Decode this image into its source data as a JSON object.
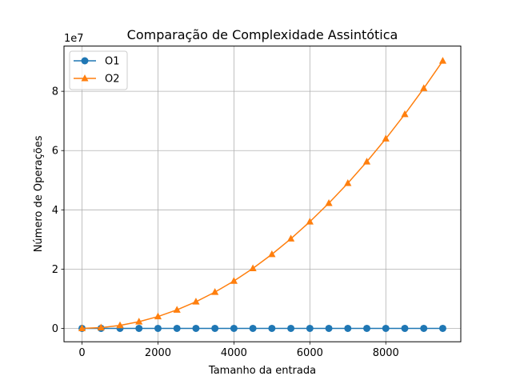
{
  "chart_data": {
    "type": "line",
    "title": "Comparação de Complexidade Assintótica",
    "xlabel": "Tamanho da entrada",
    "ylabel": "Número de Operações",
    "y_offset_label": "1e7",
    "y_scale": 10000000,
    "xlim": [
      -475,
      9975
    ],
    "ylim": [
      -4512500,
      95262500
    ],
    "x_ticks": [
      0,
      2000,
      4000,
      6000,
      8000
    ],
    "x_tick_labels": [
      "0",
      "2000",
      "4000",
      "6000",
      "8000"
    ],
    "y_ticks": [
      0,
      20000000,
      40000000,
      60000000,
      80000000
    ],
    "y_tick_labels": [
      "0",
      "2",
      "4",
      "6",
      "8"
    ],
    "grid": true,
    "legend_position": "top-left",
    "x": [
      0,
      500,
      1000,
      1500,
      2000,
      2500,
      3000,
      3500,
      4000,
      4500,
      5000,
      5500,
      6000,
      6500,
      7000,
      7500,
      8000,
      8500,
      9000,
      9500
    ],
    "series": [
      {
        "name": "O1",
        "color": "#1f77b4",
        "marker": "circle",
        "values": [
          1,
          1,
          1,
          1,
          1,
          1,
          1,
          1,
          1,
          1,
          1,
          1,
          1,
          1,
          1,
          1,
          1,
          1,
          1,
          1
        ]
      },
      {
        "name": "O2",
        "color": "#ff7f0e",
        "marker": "triangle",
        "values": [
          0,
          250000,
          1000000,
          2250000,
          4000000,
          6250000,
          9000000,
          12250000,
          16000000,
          20250000,
          25000000,
          30250000,
          36000000,
          42250000,
          49000000,
          56250000,
          64000000,
          72250000,
          81000000,
          90250000
        ]
      }
    ]
  }
}
